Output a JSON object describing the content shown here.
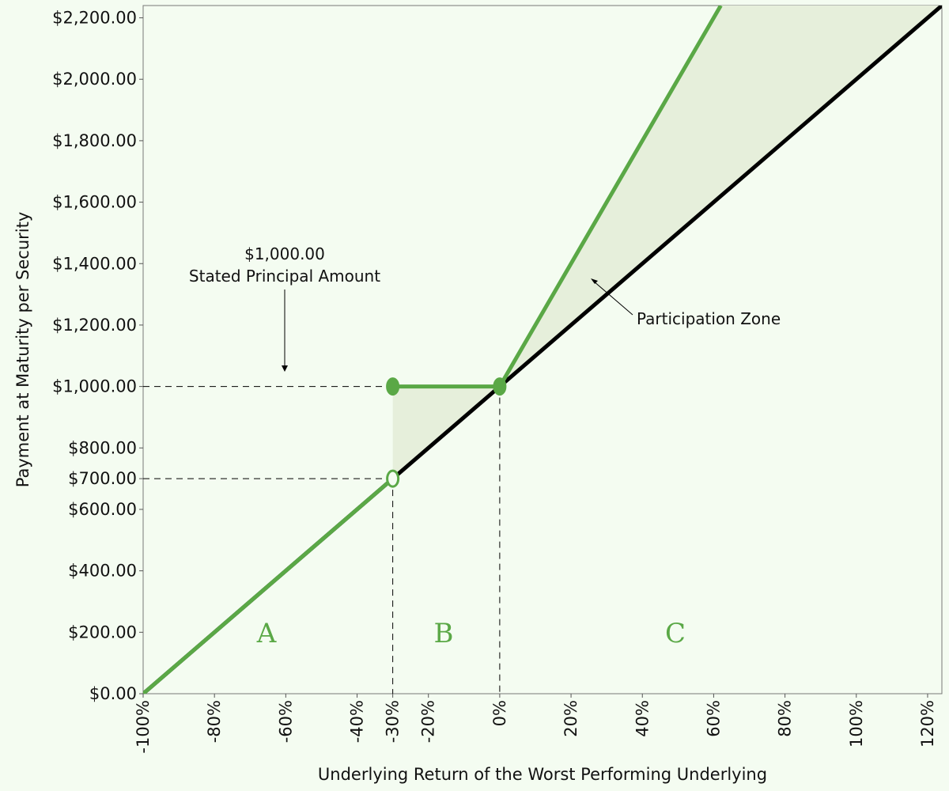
{
  "chart_data": {
    "type": "line",
    "xlabel": "Underlying Return of the Worst Performing Underlying",
    "ylabel": "Payment at Maturity per Security",
    "xlim": [
      -100,
      124
    ],
    "ylim": [
      0,
      2240
    ],
    "xticks": [
      {
        "value": -100,
        "label": "-100%"
      },
      {
        "value": -80,
        "label": "-80%"
      },
      {
        "value": -60,
        "label": "-60%"
      },
      {
        "value": -40,
        "label": "-40%"
      },
      {
        "value": -30,
        "label": "-30%"
      },
      {
        "value": -20,
        "label": "-20%"
      },
      {
        "value": 0,
        "label": "0%"
      },
      {
        "value": 20,
        "label": "20%"
      },
      {
        "value": 40,
        "label": "40%"
      },
      {
        "value": 60,
        "label": "60%"
      },
      {
        "value": 80,
        "label": "80%"
      },
      {
        "value": 100,
        "label": "100%"
      },
      {
        "value": 120,
        "label": "120%"
      }
    ],
    "yticks": [
      {
        "value": 0,
        "label": "$0.00"
      },
      {
        "value": 200,
        "label": "$200.00"
      },
      {
        "value": 400,
        "label": "$400.00"
      },
      {
        "value": 600,
        "label": "$600.00"
      },
      {
        "value": 700,
        "label": "$700.00"
      },
      {
        "value": 800,
        "label": "$800.00"
      },
      {
        "value": 1000,
        "label": "$1,000.00"
      },
      {
        "value": 1200,
        "label": "$1,200.00"
      },
      {
        "value": 1400,
        "label": "$1,400.00"
      },
      {
        "value": 1600,
        "label": "$1,600.00"
      },
      {
        "value": 1800,
        "label": "$1,800.00"
      },
      {
        "value": 2000,
        "label": "$2,000.00"
      },
      {
        "value": 2200,
        "label": "$2,200.00"
      }
    ],
    "series": [
      {
        "color": "#000000",
        "x": [
          -100,
          0,
          124
        ],
        "values": [
          0,
          1000,
          2240
        ]
      },
      {
        "color": "#5aa846",
        "x": [
          -100,
          -30,
          -30,
          -30,
          0,
          62
        ],
        "values": [
          0,
          700,
          null,
          1000,
          1000,
          2240
        ]
      }
    ],
    "points": [
      {
        "x": -30,
        "y": 1000,
        "filled": true
      },
      {
        "x": 0,
        "y": 1000,
        "filled": true
      },
      {
        "x": -30,
        "y": 700,
        "filled": false
      }
    ],
    "annotations": {
      "principal_value": "$1,000.00",
      "principal_text": "Stated Principal Amount",
      "zone": "Participation Zone",
      "regions": [
        "A",
        "B",
        "C"
      ]
    }
  }
}
